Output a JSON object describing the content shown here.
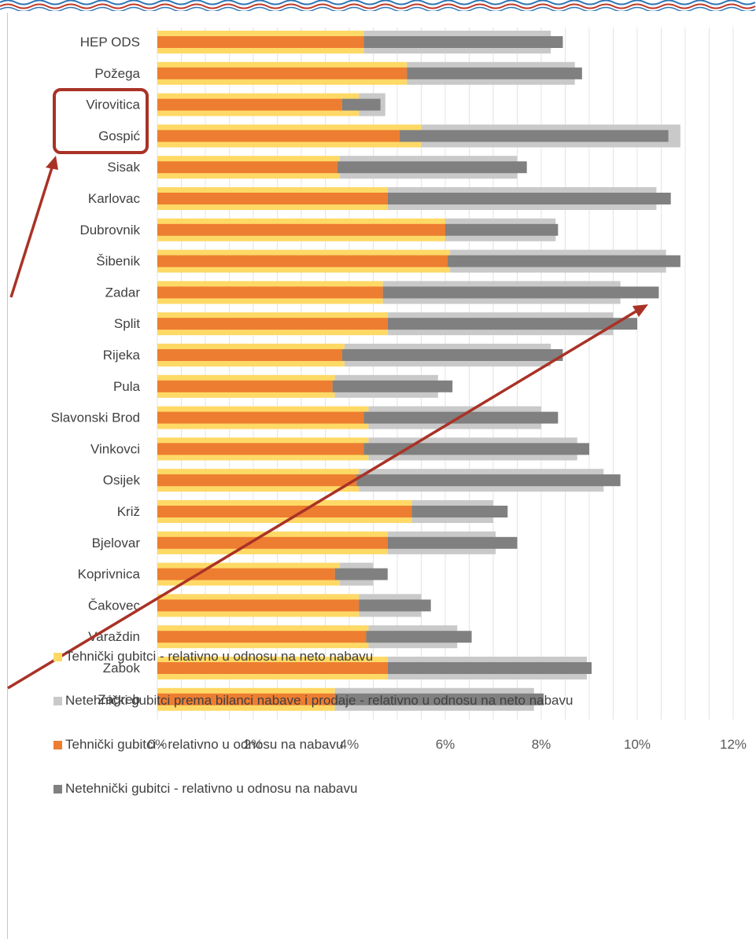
{
  "chart_data": {
    "type": "bar",
    "orientation": "horizontal",
    "stacked": true,
    "categories": [
      "HEP ODS",
      "Požega",
      "Virovitica",
      "Gospić",
      "Sisak",
      "Karlovac",
      "Dubrovnik",
      "Šibenik",
      "Zadar",
      "Split",
      "Rijeka",
      "Pula",
      "Slavonski Brod",
      "Vinkovci",
      "Osijek",
      "Križ",
      "Bjelovar",
      "Koprivnica",
      "Čakovec",
      "Varaždin",
      "Zabok",
      "Zagreb"
    ],
    "series": [
      {
        "name": "Tehnički gubitci - relativno u odnosu na neto nabavu",
        "color": "#FFD966",
        "group": "neto nabava",
        "values": [
          4.3,
          5.2,
          4.2,
          5.5,
          3.8,
          4.8,
          6.0,
          6.1,
          4.7,
          4.8,
          3.9,
          3.7,
          4.4,
          4.4,
          4.2,
          5.3,
          4.8,
          3.8,
          4.2,
          4.4,
          4.8,
          3.7
        ]
      },
      {
        "name": "Netehnički gubitci prema bilanci nabave i prodaje - relativno u odnosu na neto nabavu",
        "color": "#C9C9C9",
        "group": "neto nabava",
        "values": [
          3.9,
          3.5,
          0.55,
          5.4,
          3.7,
          5.6,
          2.3,
          4.5,
          4.95,
          4.7,
          4.3,
          2.15,
          3.6,
          4.35,
          5.1,
          1.7,
          2.25,
          0.7,
          1.3,
          1.85,
          4.15,
          4.15
        ]
      },
      {
        "name": "Tehnički gubitci - relativno u odnosu na nabavu",
        "color": "#ED7D31",
        "group": "nabava",
        "values": [
          4.3,
          5.2,
          3.85,
          5.05,
          3.75,
          4.8,
          6.0,
          6.05,
          4.7,
          4.8,
          3.85,
          3.65,
          4.3,
          4.3,
          4.15,
          5.3,
          4.8,
          3.7,
          4.2,
          4.35,
          4.8,
          3.7
        ]
      },
      {
        "name": "Netehnički gubitci - relativno u odnosu na nabavu",
        "color": "#808080",
        "group": "nabava",
        "values": [
          4.15,
          3.65,
          0.8,
          5.6,
          3.95,
          5.9,
          2.35,
          4.85,
          5.75,
          5.2,
          4.6,
          2.5,
          4.05,
          4.7,
          5.5,
          2.0,
          2.7,
          1.1,
          1.5,
          2.2,
          4.25,
          4.35
        ]
      }
    ],
    "xlim": [
      0,
      12
    ],
    "x_ticks": [
      "0%",
      "2%",
      "4%",
      "6%",
      "8%",
      "10%",
      "12%"
    ],
    "grid": {
      "vertical": true,
      "minor_step": 0.5
    },
    "legend_position": "bottom",
    "annotations": {
      "highlight_box": [
        "Virovitica",
        "Gospić"
      ],
      "arrows": 2,
      "color": "#A93226"
    }
  }
}
